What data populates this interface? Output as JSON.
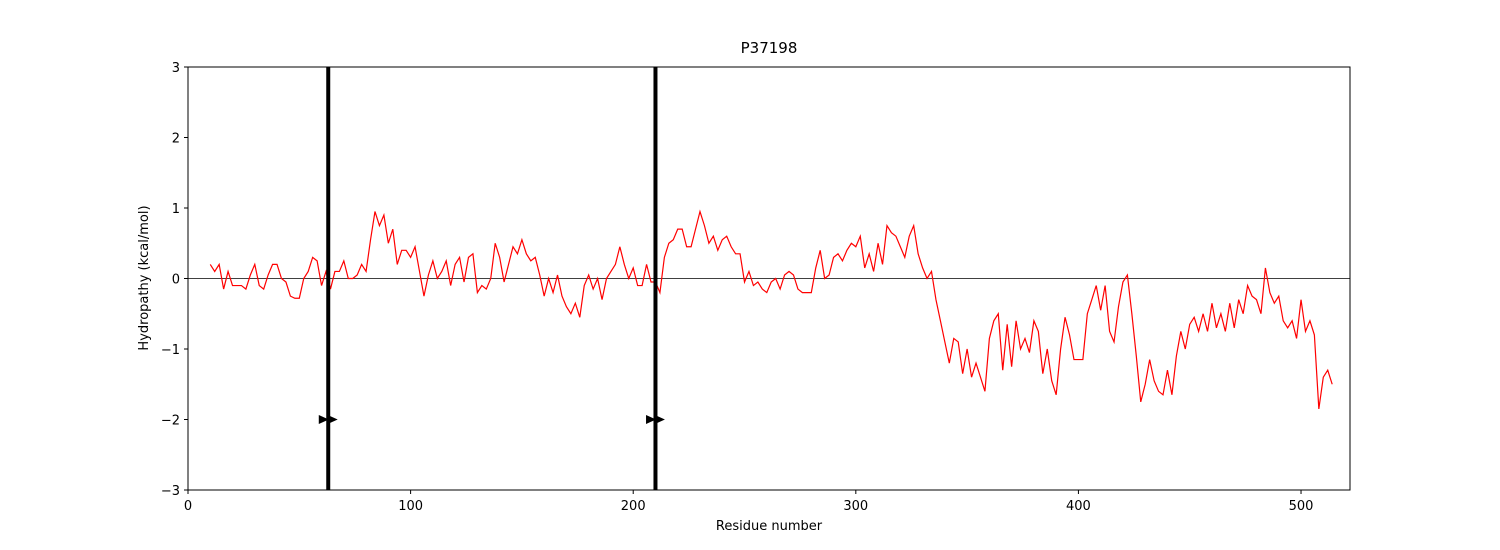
{
  "chart_data": {
    "type": "line",
    "title": "P37198",
    "xlabel": "Residue number",
    "ylabel": "Hydropathy (kcal/mol)",
    "xlim": [
      0,
      522
    ],
    "ylim": [
      -3,
      3
    ],
    "xticks": [
      0,
      100,
      200,
      300,
      400,
      500
    ],
    "yticks": [
      {
        "value": -3,
        "label": "−3"
      },
      {
        "value": -2,
        "label": "−2"
      },
      {
        "value": -1,
        "label": "−1"
      },
      0,
      1,
      2,
      3
    ],
    "hline": 0,
    "vlines": [
      63,
      210
    ],
    "markers": {
      "x": [
        61,
        65,
        208,
        212
      ],
      "y": [
        -2,
        -2,
        -2,
        -2
      ],
      "color": "#000000"
    },
    "x": [
      10,
      12,
      14,
      16,
      18,
      20,
      22,
      24,
      26,
      28,
      30,
      32,
      34,
      36,
      38,
      40,
      42,
      44,
      46,
      48,
      50,
      52,
      54,
      56,
      58,
      60,
      62,
      64,
      66,
      68,
      70,
      72,
      74,
      76,
      78,
      80,
      82,
      84,
      86,
      88,
      90,
      92,
      94,
      96,
      98,
      100,
      102,
      104,
      106,
      108,
      110,
      112,
      114,
      116,
      118,
      120,
      122,
      124,
      126,
      128,
      130,
      132,
      134,
      136,
      138,
      140,
      142,
      144,
      146,
      148,
      150,
      152,
      154,
      156,
      158,
      160,
      162,
      164,
      166,
      168,
      170,
      172,
      174,
      176,
      178,
      180,
      182,
      184,
      186,
      188,
      190,
      192,
      194,
      196,
      198,
      200,
      202,
      204,
      206,
      208,
      210,
      212,
      214,
      216,
      218,
      220,
      222,
      224,
      226,
      228,
      230,
      232,
      234,
      236,
      238,
      240,
      242,
      244,
      246,
      248,
      250,
      252,
      254,
      256,
      258,
      260,
      262,
      264,
      266,
      268,
      270,
      272,
      274,
      276,
      278,
      280,
      282,
      284,
      286,
      288,
      290,
      292,
      294,
      296,
      298,
      300,
      302,
      304,
      306,
      308,
      310,
      312,
      314,
      316,
      318,
      320,
      322,
      324,
      326,
      328,
      330,
      332,
      334,
      336,
      338,
      340,
      342,
      344,
      346,
      348,
      350,
      352,
      354,
      356,
      358,
      360,
      362,
      364,
      366,
      368,
      370,
      372,
      374,
      376,
      378,
      380,
      382,
      384,
      386,
      388,
      390,
      392,
      394,
      396,
      398,
      400,
      402,
      404,
      406,
      408,
      410,
      412,
      414,
      416,
      418,
      420,
      422,
      424,
      426,
      428,
      430,
      432,
      434,
      436,
      438,
      440,
      442,
      444,
      446,
      448,
      450,
      452,
      454,
      456,
      458,
      460,
      462,
      464,
      466,
      468,
      470,
      472,
      474,
      476,
      478,
      480,
      482,
      484,
      486,
      488,
      490,
      492,
      494,
      496,
      498,
      500,
      502,
      504,
      506,
      508,
      510,
      512,
      514
    ],
    "series": [
      {
        "color": "#ff0000",
        "values": [
          0.2,
          0.1,
          0.2,
          -0.15,
          0.1,
          -0.1,
          -0.1,
          -0.1,
          -0.15,
          0.05,
          0.2,
          -0.1,
          -0.15,
          0.05,
          0.2,
          0.2,
          0.0,
          -0.05,
          -0.25,
          -0.28,
          -0.28,
          0.0,
          0.1,
          0.3,
          0.25,
          -0.1,
          0.1,
          -0.15,
          0.1,
          0.1,
          0.25,
          0.0,
          0.0,
          0.05,
          0.2,
          0.1,
          0.55,
          0.95,
          0.75,
          0.9,
          0.5,
          0.7,
          0.2,
          0.4,
          0.4,
          0.3,
          0.45,
          0.1,
          -0.25,
          0.05,
          0.25,
          0.0,
          0.1,
          0.25,
          -0.1,
          0.2,
          0.3,
          -0.05,
          0.3,
          0.35,
          -0.2,
          -0.1,
          -0.15,
          0.0,
          0.5,
          0.3,
          -0.05,
          0.2,
          0.45,
          0.35,
          0.55,
          0.35,
          0.25,
          0.3,
          0.05,
          -0.25,
          0.0,
          -0.2,
          0.05,
          -0.25,
          -0.4,
          -0.5,
          -0.35,
          -0.55,
          -0.1,
          0.05,
          -0.15,
          0.0,
          -0.3,
          0.0,
          0.1,
          0.2,
          0.45,
          0.2,
          0.0,
          0.15,
          -0.1,
          -0.1,
          0.2,
          -0.05,
          -0.05,
          -0.2,
          0.3,
          0.5,
          0.55,
          0.7,
          0.7,
          0.45,
          0.45,
          0.7,
          0.95,
          0.75,
          0.5,
          0.6,
          0.4,
          0.55,
          0.6,
          0.45,
          0.35,
          0.35,
          -0.05,
          0.1,
          -0.1,
          -0.05,
          -0.15,
          -0.2,
          -0.05,
          0.0,
          -0.15,
          0.05,
          0.1,
          0.05,
          -0.15,
          -0.2,
          -0.2,
          -0.2,
          0.15,
          0.4,
          0.0,
          0.05,
          0.3,
          0.35,
          0.25,
          0.4,
          0.5,
          0.45,
          0.6,
          0.15,
          0.35,
          0.1,
          0.5,
          0.2,
          0.75,
          0.65,
          0.6,
          0.45,
          0.3,
          0.6,
          0.75,
          0.35,
          0.15,
          0.0,
          0.1,
          -0.3,
          -0.6,
          -0.9,
          -1.2,
          -0.85,
          -0.9,
          -1.35,
          -1.0,
          -1.4,
          -1.2,
          -1.4,
          -1.6,
          -0.85,
          -0.6,
          -0.5,
          -1.3,
          -0.65,
          -1.25,
          -0.6,
          -1.0,
          -0.85,
          -1.05,
          -0.6,
          -0.75,
          -1.35,
          -1.0,
          -1.45,
          -1.65,
          -1.0,
          -0.55,
          -0.8,
          -1.15,
          -1.15,
          -1.15,
          -0.5,
          -0.3,
          -0.1,
          -0.45,
          -0.1,
          -0.75,
          -0.9,
          -0.4,
          -0.05,
          0.05,
          -0.5,
          -1.1,
          -1.75,
          -1.5,
          -1.15,
          -1.45,
          -1.6,
          -1.65,
          -1.3,
          -1.65,
          -1.1,
          -0.75,
          -1.0,
          -0.65,
          -0.55,
          -0.75,
          -0.5,
          -0.75,
          -0.35,
          -0.7,
          -0.5,
          -0.75,
          -0.35,
          -0.7,
          -0.3,
          -0.5,
          -0.1,
          -0.25,
          -0.3,
          -0.5,
          0.15,
          -0.2,
          -0.35,
          -0.25,
          -0.6,
          -0.7,
          -0.6,
          -0.85,
          -0.3,
          -0.75,
          -0.6,
          -0.8,
          -1.85,
          -1.4,
          -1.3,
          -1.5
        ]
      }
    ]
  }
}
